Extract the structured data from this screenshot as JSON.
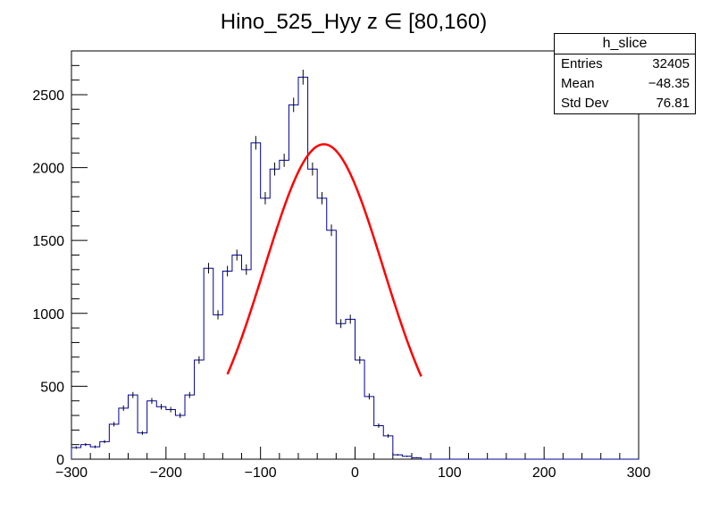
{
  "title": "Hino_525_Hyy z  ∈ [80,160)",
  "stats": {
    "name": "h_slice",
    "rows": [
      {
        "label": "Entries",
        "value": "32405"
      },
      {
        "label": "Mean",
        "value": "−48.35"
      },
      {
        "label": "Std Dev",
        "value": "76.81"
      }
    ]
  },
  "chart_data": {
    "type": "histogram",
    "xlim": [
      -300,
      300
    ],
    "ylim": [
      0,
      2800
    ],
    "xticks": [
      -300,
      -200,
      -100,
      0,
      100,
      200,
      300
    ],
    "yticks": [
      0,
      500,
      1000,
      1500,
      2000,
      2500
    ],
    "xtick_labels": [
      "−300",
      "−200",
      "−100",
      "0",
      "100",
      "200",
      "300"
    ],
    "ytick_labels": [
      "0",
      "500",
      "1000",
      "1500",
      "2000",
      "2500"
    ],
    "bin_edges_start": -300,
    "bin_width": 10,
    "counts": [
      80,
      100,
      85,
      120,
      240,
      350,
      440,
      180,
      400,
      360,
      340,
      300,
      440,
      680,
      1310,
      990,
      1290,
      1400,
      1300,
      2170,
      1790,
      1990,
      2050,
      2430,
      2620,
      1990,
      1790,
      1570,
      930,
      960,
      680,
      430,
      230,
      160,
      30,
      20,
      10,
      0,
      0,
      0,
      0,
      0,
      0,
      0,
      0,
      0,
      0,
      0,
      0,
      0,
      0,
      0,
      0,
      0,
      0,
      0,
      0,
      0,
      0,
      0
    ],
    "histogram_color": "#000099",
    "fit": {
      "function": "gaus",
      "constant": 2160,
      "mean": -33,
      "sigma": 63,
      "range": [
        -135,
        70
      ],
      "color": "#ff0000"
    }
  }
}
